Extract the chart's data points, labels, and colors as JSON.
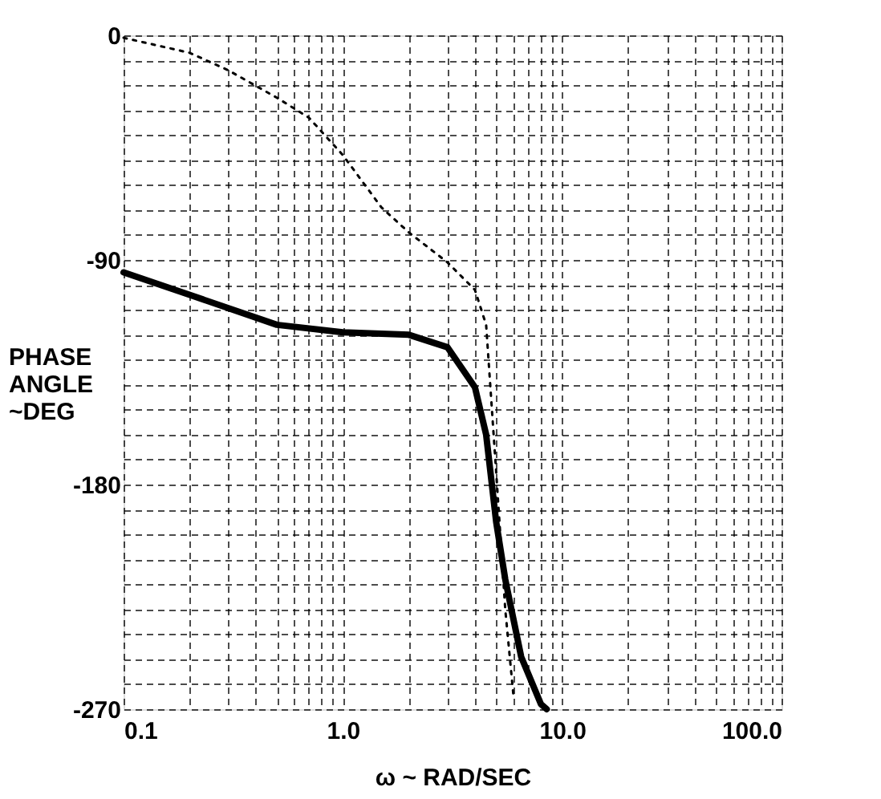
{
  "chart_data": {
    "type": "line",
    "xlabel": "ω ~ RAD/SEC",
    "ylabel": "PHASE ANGLE ~DEG",
    "log": "x",
    "grid": true,
    "marker": "none",
    "xlim": [
      0.1,
      100
    ],
    "ylim": [
      -270,
      0
    ],
    "xticks": [
      {
        "value": 0.1,
        "label": "0.1"
      },
      {
        "value": 0.2,
        "label": null
      },
      {
        "value": 0.3,
        "label": null
      },
      {
        "value": 0.4,
        "label": null
      },
      {
        "value": 0.5,
        "label": null
      },
      {
        "value": 0.6,
        "label": null
      },
      {
        "value": 0.7,
        "label": null
      },
      {
        "value": 0.8,
        "label": null
      },
      {
        "value": 0.9,
        "label": null
      },
      {
        "value": 1,
        "label": "1.0"
      },
      {
        "value": 2,
        "label": null
      },
      {
        "value": 3,
        "label": null
      },
      {
        "value": 4,
        "label": null
      },
      {
        "value": 5,
        "label": null
      },
      {
        "value": 6,
        "label": null
      },
      {
        "value": 7,
        "label": null
      },
      {
        "value": 8,
        "label": null
      },
      {
        "value": 9,
        "label": null
      },
      {
        "value": 10,
        "label": "10.0"
      },
      {
        "value": 20,
        "label": null
      },
      {
        "value": 30,
        "label": null
      },
      {
        "value": 40,
        "label": null
      },
      {
        "value": 50,
        "label": null
      },
      {
        "value": 60,
        "label": null
      },
      {
        "value": 70,
        "label": null
      },
      {
        "value": 80,
        "label": null
      },
      {
        "value": 90,
        "label": null
      },
      {
        "value": 100,
        "label": "100.0"
      }
    ],
    "yticks": [
      -270,
      {
        "value": -260,
        "label": null
      },
      {
        "value": -250,
        "label": null
      },
      {
        "value": -240,
        "label": null
      },
      {
        "value": -230,
        "label": null
      },
      {
        "value": -220,
        "label": null
      },
      {
        "value": -210,
        "label": null
      },
      {
        "value": -200,
        "label": null
      },
      {
        "value": -190,
        "label": null
      },
      -180,
      {
        "value": -170,
        "label": null
      },
      {
        "value": -160,
        "label": null
      },
      {
        "value": -150,
        "label": null
      },
      {
        "value": -140,
        "label": null
      },
      {
        "value": -130,
        "label": null
      },
      {
        "value": -120,
        "label": null
      },
      {
        "value": -110,
        "label": null
      },
      {
        "value": -100,
        "label": null
      },
      -90,
      {
        "value": -80,
        "label": null
      },
      {
        "value": -70,
        "label": null
      },
      {
        "value": -60,
        "label": null
      },
      {
        "value": -50,
        "label": null
      },
      {
        "value": -40,
        "label": null
      },
      {
        "value": -30,
        "label": null
      },
      {
        "value": -20,
        "label": null
      },
      {
        "value": -10,
        "label": null
      },
      0
    ],
    "series": [
      {
        "color": "#000000",
        "line_style": "solid",
        "x": [
          0.1,
          0.2,
          0.5,
          1,
          2,
          3,
          4,
          4.5,
          5,
          5.5,
          6.5,
          8,
          8.5
        ],
        "values": [
          -95,
          -104,
          -116,
          -119,
          -120,
          -125,
          -141,
          -160,
          -195,
          -218,
          -249,
          -268,
          -270
        ]
      },
      {
        "color": "#000000",
        "line_style": "dotted",
        "x": [
          0.1,
          0.2,
          0.3,
          0.5,
          0.7,
          1,
          1.5,
          2,
          3,
          4,
          4.5,
          5,
          5.5,
          6
        ],
        "values": [
          -1,
          -7,
          -14,
          -25,
          -33,
          -48,
          -69,
          -79,
          -91,
          -102,
          -116,
          -175,
          -230,
          -265
        ]
      }
    ]
  }
}
